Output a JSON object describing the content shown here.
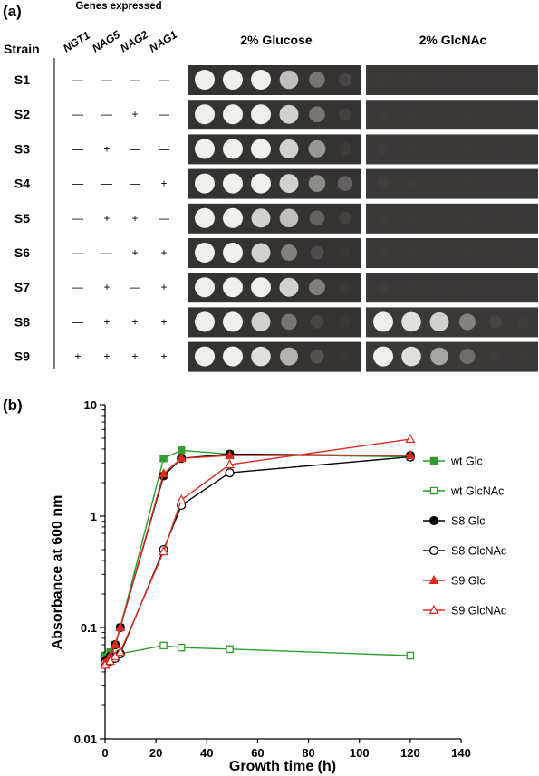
{
  "panel_a": {
    "label": "(a)",
    "genes_header": "Genes expressed",
    "strain_header": "Strain",
    "genes": [
      "NGT1",
      "NAG5",
      "NAG2",
      "NAG1"
    ],
    "conditions": [
      "2% Glucose",
      "2% GlcNAc"
    ],
    "strains": [
      {
        "name": "S1",
        "genes": [
          "—",
          "—",
          "—",
          "—"
        ],
        "growth": [
          [
            1,
            1,
            1,
            0.85,
            0.55,
            0.25
          ],
          [
            0.06,
            0.05,
            0.04,
            0.03,
            0.02,
            0.01
          ]
        ]
      },
      {
        "name": "S2",
        "genes": [
          "—",
          "—",
          "+",
          "—"
        ],
        "growth": [
          [
            1,
            1,
            1,
            0.9,
            0.55,
            0.2
          ],
          [
            0.06,
            0.05,
            0.04,
            0.03,
            0.02,
            0.01
          ]
        ]
      },
      {
        "name": "S3",
        "genes": [
          "—",
          "+",
          "—",
          "—"
        ],
        "growth": [
          [
            1,
            1,
            1,
            0.9,
            0.7,
            0.15
          ],
          [
            0.1,
            0.05,
            0.03,
            0.02,
            0.01,
            0.01
          ]
        ]
      },
      {
        "name": "S4",
        "genes": [
          "—",
          "—",
          "—",
          "+"
        ],
        "growth": [
          [
            1,
            1,
            1,
            0.9,
            0.65,
            0.45
          ],
          [
            0.12,
            0.08,
            0.05,
            0.03,
            0.02,
            0.01
          ]
        ]
      },
      {
        "name": "S5",
        "genes": [
          "—",
          "+",
          "+",
          "—"
        ],
        "growth": [
          [
            1,
            1,
            0.9,
            0.85,
            0.45,
            0.2
          ],
          [
            0.06,
            0.05,
            0.04,
            0.03,
            0.02,
            0.01
          ]
        ]
      },
      {
        "name": "S6",
        "genes": [
          "—",
          "—",
          "+",
          "+"
        ],
        "growth": [
          [
            1,
            1,
            0.9,
            0.6,
            0.3,
            0.05
          ],
          [
            0.06,
            0.05,
            0.04,
            0.03,
            0.02,
            0.01
          ]
        ]
      },
      {
        "name": "S7",
        "genes": [
          "—",
          "+",
          "—",
          "+"
        ],
        "growth": [
          [
            1,
            1,
            1,
            0.9,
            0.6,
            0.1
          ],
          [
            0.1,
            0.05,
            0.03,
            0.02,
            0.01,
            0.01
          ]
        ]
      },
      {
        "name": "S8",
        "genes": [
          "—",
          "+",
          "+",
          "+"
        ],
        "growth": [
          [
            1,
            1,
            0.9,
            0.55,
            0.25,
            0.1
          ],
          [
            1,
            0.95,
            0.9,
            0.6,
            0.2,
            0.1
          ]
        ]
      },
      {
        "name": "S9",
        "genes": [
          "+",
          "+",
          "+",
          "+"
        ],
        "growth": [
          [
            1,
            1,
            0.95,
            0.8,
            0.35,
            0.05
          ],
          [
            1,
            0.95,
            0.75,
            0.5,
            0.1,
            0.05
          ]
        ]
      }
    ]
  },
  "panel_b": {
    "label": "(b)",
    "colors": {
      "green": "#2e9e2e",
      "black": "#000000",
      "red": "#dd2a1f"
    },
    "chart_data": {
      "type": "line",
      "xlabel": "Growth time (h)",
      "ylabel": "Absorbance at 600 nm",
      "xlim": [
        0,
        140
      ],
      "ylim": [
        0.01,
        10
      ],
      "yscale": "log",
      "xticks": [
        "0",
        "20",
        "40",
        "60",
        "80",
        "100",
        "120",
        "140"
      ],
      "yticks": [
        "10",
        "1",
        "0.1",
        "0.01"
      ],
      "legend_position": "right",
      "series": [
        {
          "name": "wt Glc",
          "color": "green",
          "marker": "square",
          "filled": true,
          "x": [
            0,
            2,
            4,
            6,
            23,
            30,
            49,
            120
          ],
          "y": [
            0.055,
            0.06,
            0.07,
            0.1,
            3.3,
            3.9,
            3.6,
            3.4
          ]
        },
        {
          "name": "wt GlcNAc",
          "color": "green",
          "marker": "square",
          "filled": false,
          "x": [
            0,
            2,
            4,
            6,
            23,
            30,
            49,
            120
          ],
          "y": [
            0.052,
            0.053,
            0.055,
            0.058,
            0.069,
            0.066,
            0.064,
            0.056
          ]
        },
        {
          "name": "S8 Glc",
          "color": "black",
          "marker": "circle",
          "filled": true,
          "x": [
            0,
            2,
            4,
            6,
            23,
            30,
            49,
            120
          ],
          "y": [
            0.05,
            0.055,
            0.07,
            0.1,
            2.3,
            3.3,
            3.6,
            3.5
          ]
        },
        {
          "name": "S8 GlcNAc",
          "color": "black",
          "marker": "circle",
          "filled": false,
          "x": [
            0,
            2,
            4,
            6,
            23,
            30,
            49,
            120
          ],
          "y": [
            0.048,
            0.05,
            0.053,
            0.058,
            0.5,
            1.25,
            2.45,
            3.4
          ]
        },
        {
          "name": "S9 Glc",
          "color": "red",
          "marker": "triangle",
          "filled": true,
          "x": [
            0,
            2,
            4,
            6,
            23,
            30,
            49,
            120
          ],
          "y": [
            0.048,
            0.055,
            0.07,
            0.1,
            2.4,
            3.3,
            3.5,
            3.5
          ]
        },
        {
          "name": "S9 GlcNAc",
          "color": "red",
          "marker": "triangle",
          "filled": false,
          "x": [
            0,
            2,
            4,
            6,
            23,
            30,
            49,
            120
          ],
          "y": [
            0.046,
            0.05,
            0.055,
            0.06,
            0.48,
            1.4,
            2.9,
            4.9
          ]
        }
      ]
    }
  }
}
